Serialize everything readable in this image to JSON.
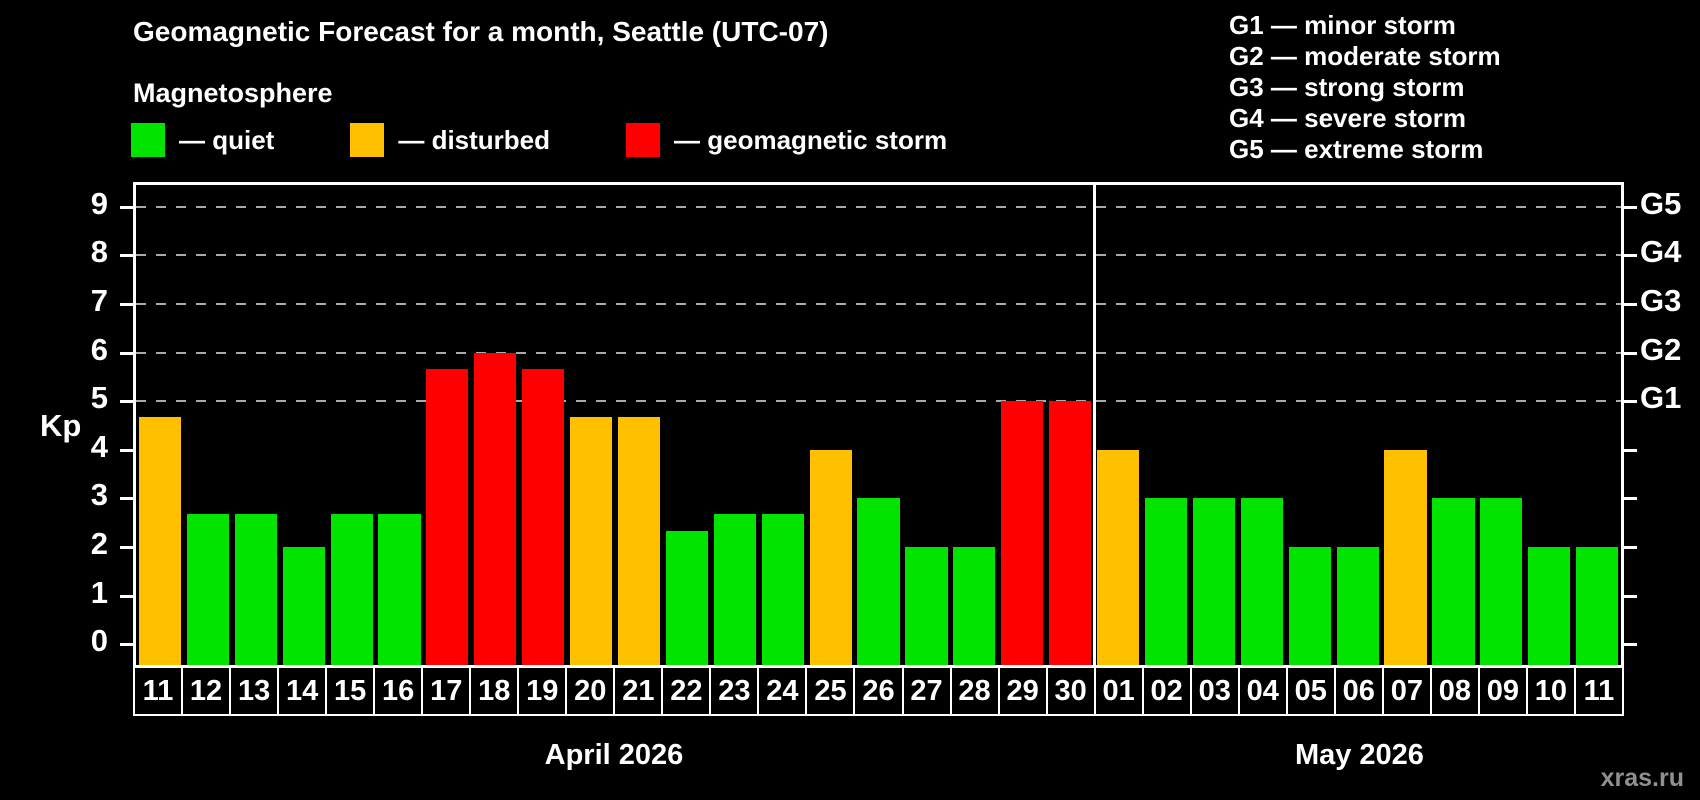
{
  "title": "Geomagnetic Forecast for a month, Seattle (UTC-07)",
  "subtitle": "Magnetosphere",
  "watermark": "xras.ru",
  "colors": {
    "background": "#000000",
    "axis": "#ffffff",
    "grid": "#aaaaaa",
    "watermark_text": "#909090"
  },
  "legend": {
    "items": [
      {
        "name": "quiet",
        "label": "— quiet",
        "color": "#00e400"
      },
      {
        "name": "disturbed",
        "label": "— disturbed",
        "color": "#ffc000"
      },
      {
        "name": "storm",
        "label": "— geomagnetic storm",
        "color": "#ff0000"
      }
    ]
  },
  "g_legend": {
    "items": [
      "G1 — minor storm",
      "G2 — moderate storm",
      "G3 — strong storm",
      "G4 — severe storm",
      "G5 — extreme storm"
    ]
  },
  "y_axis": {
    "label": "Kp",
    "ticks": [
      0,
      1,
      2,
      3,
      4,
      5,
      6,
      7,
      8,
      9
    ]
  },
  "right_axis": {
    "labels": [
      {
        "text": "G1",
        "value": 5
      },
      {
        "text": "G2",
        "value": 6
      },
      {
        "text": "G3",
        "value": 7
      },
      {
        "text": "G4",
        "value": 8
      },
      {
        "text": "G5",
        "value": 9
      }
    ]
  },
  "chart_data": {
    "type": "bar",
    "title": "Geomagnetic Forecast for a month, Seattle (UTC-07)",
    "xlabel": "",
    "ylabel": "Kp",
    "ylim": [
      0,
      9
    ],
    "grid_values": [
      5,
      6,
      7,
      8,
      9
    ],
    "legend_position": "top-left",
    "months": [
      {
        "label": "April 2026",
        "days": [
          {
            "day": "11",
            "kp": 4.67,
            "status": "disturbed"
          },
          {
            "day": "12",
            "kp": 2.67,
            "status": "quiet"
          },
          {
            "day": "13",
            "kp": 2.67,
            "status": "quiet"
          },
          {
            "day": "14",
            "kp": 2.0,
            "status": "quiet"
          },
          {
            "day": "15",
            "kp": 2.67,
            "status": "quiet"
          },
          {
            "day": "16",
            "kp": 2.67,
            "status": "quiet"
          },
          {
            "day": "17",
            "kp": 5.67,
            "status": "storm"
          },
          {
            "day": "18",
            "kp": 6.0,
            "status": "storm"
          },
          {
            "day": "19",
            "kp": 5.67,
            "status": "storm"
          },
          {
            "day": "20",
            "kp": 4.67,
            "status": "disturbed"
          },
          {
            "day": "21",
            "kp": 4.67,
            "status": "disturbed"
          },
          {
            "day": "22",
            "kp": 2.33,
            "status": "quiet"
          },
          {
            "day": "23",
            "kp": 2.67,
            "status": "quiet"
          },
          {
            "day": "24",
            "kp": 2.67,
            "status": "quiet"
          },
          {
            "day": "25",
            "kp": 4.0,
            "status": "disturbed"
          },
          {
            "day": "26",
            "kp": 3.0,
            "status": "quiet"
          },
          {
            "day": "27",
            "kp": 2.0,
            "status": "quiet"
          },
          {
            "day": "28",
            "kp": 2.0,
            "status": "quiet"
          },
          {
            "day": "29",
            "kp": 5.0,
            "status": "storm"
          },
          {
            "day": "30",
            "kp": 5.0,
            "status": "storm"
          }
        ]
      },
      {
        "label": "May 2026",
        "days": [
          {
            "day": "01",
            "kp": 4.0,
            "status": "disturbed"
          },
          {
            "day": "02",
            "kp": 3.0,
            "status": "quiet"
          },
          {
            "day": "03",
            "kp": 3.0,
            "status": "quiet"
          },
          {
            "day": "04",
            "kp": 3.0,
            "status": "quiet"
          },
          {
            "day": "05",
            "kp": 2.0,
            "status": "quiet"
          },
          {
            "day": "06",
            "kp": 2.0,
            "status": "quiet"
          },
          {
            "day": "07",
            "kp": 4.0,
            "status": "disturbed"
          },
          {
            "day": "08",
            "kp": 3.0,
            "status": "quiet"
          },
          {
            "day": "09",
            "kp": 3.0,
            "status": "quiet"
          },
          {
            "day": "10",
            "kp": 2.0,
            "status": "quiet"
          },
          {
            "day": "11",
            "kp": 2.0,
            "status": "quiet"
          }
        ]
      }
    ]
  }
}
